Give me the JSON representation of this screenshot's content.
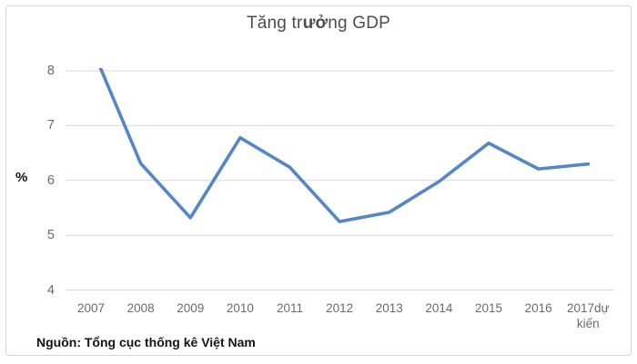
{
  "chart_data": {
    "type": "line",
    "title": "Tăng trưởng GDP",
    "title_parts": [
      {
        "text": "Tăng tr",
        "bold": false
      },
      {
        "text": "ưở",
        "bold": true
      },
      {
        "text": "ng GDP",
        "bold": false
      }
    ],
    "ylabel": "%",
    "xlabel": "",
    "source": "Nguồn: Tổng cục thống kê Việt Nam",
    "categories": [
      "2007",
      "2008",
      "2009",
      "2010",
      "2011",
      "2012",
      "2013",
      "2014",
      "2015",
      "2016",
      "2017dự kiến"
    ],
    "values": [
      8.46,
      6.31,
      5.32,
      6.78,
      6.24,
      5.25,
      5.42,
      5.98,
      6.68,
      6.21,
      6.3
    ],
    "yticks": [
      8,
      7,
      6,
      5,
      4
    ],
    "ylim": [
      4,
      8
    ],
    "grid": true,
    "legend_position": "none",
    "note": "2007 value exceeds axis max and is clipped at top of plot area",
    "colors": {
      "line": "#5586C5",
      "grid": "#D9D9D9",
      "tick_text": "#6A6A6A",
      "title_text": "#4D4D4D",
      "label_text": "#141414",
      "border": "#D6D6D6",
      "background": "#FFFFFF"
    }
  }
}
